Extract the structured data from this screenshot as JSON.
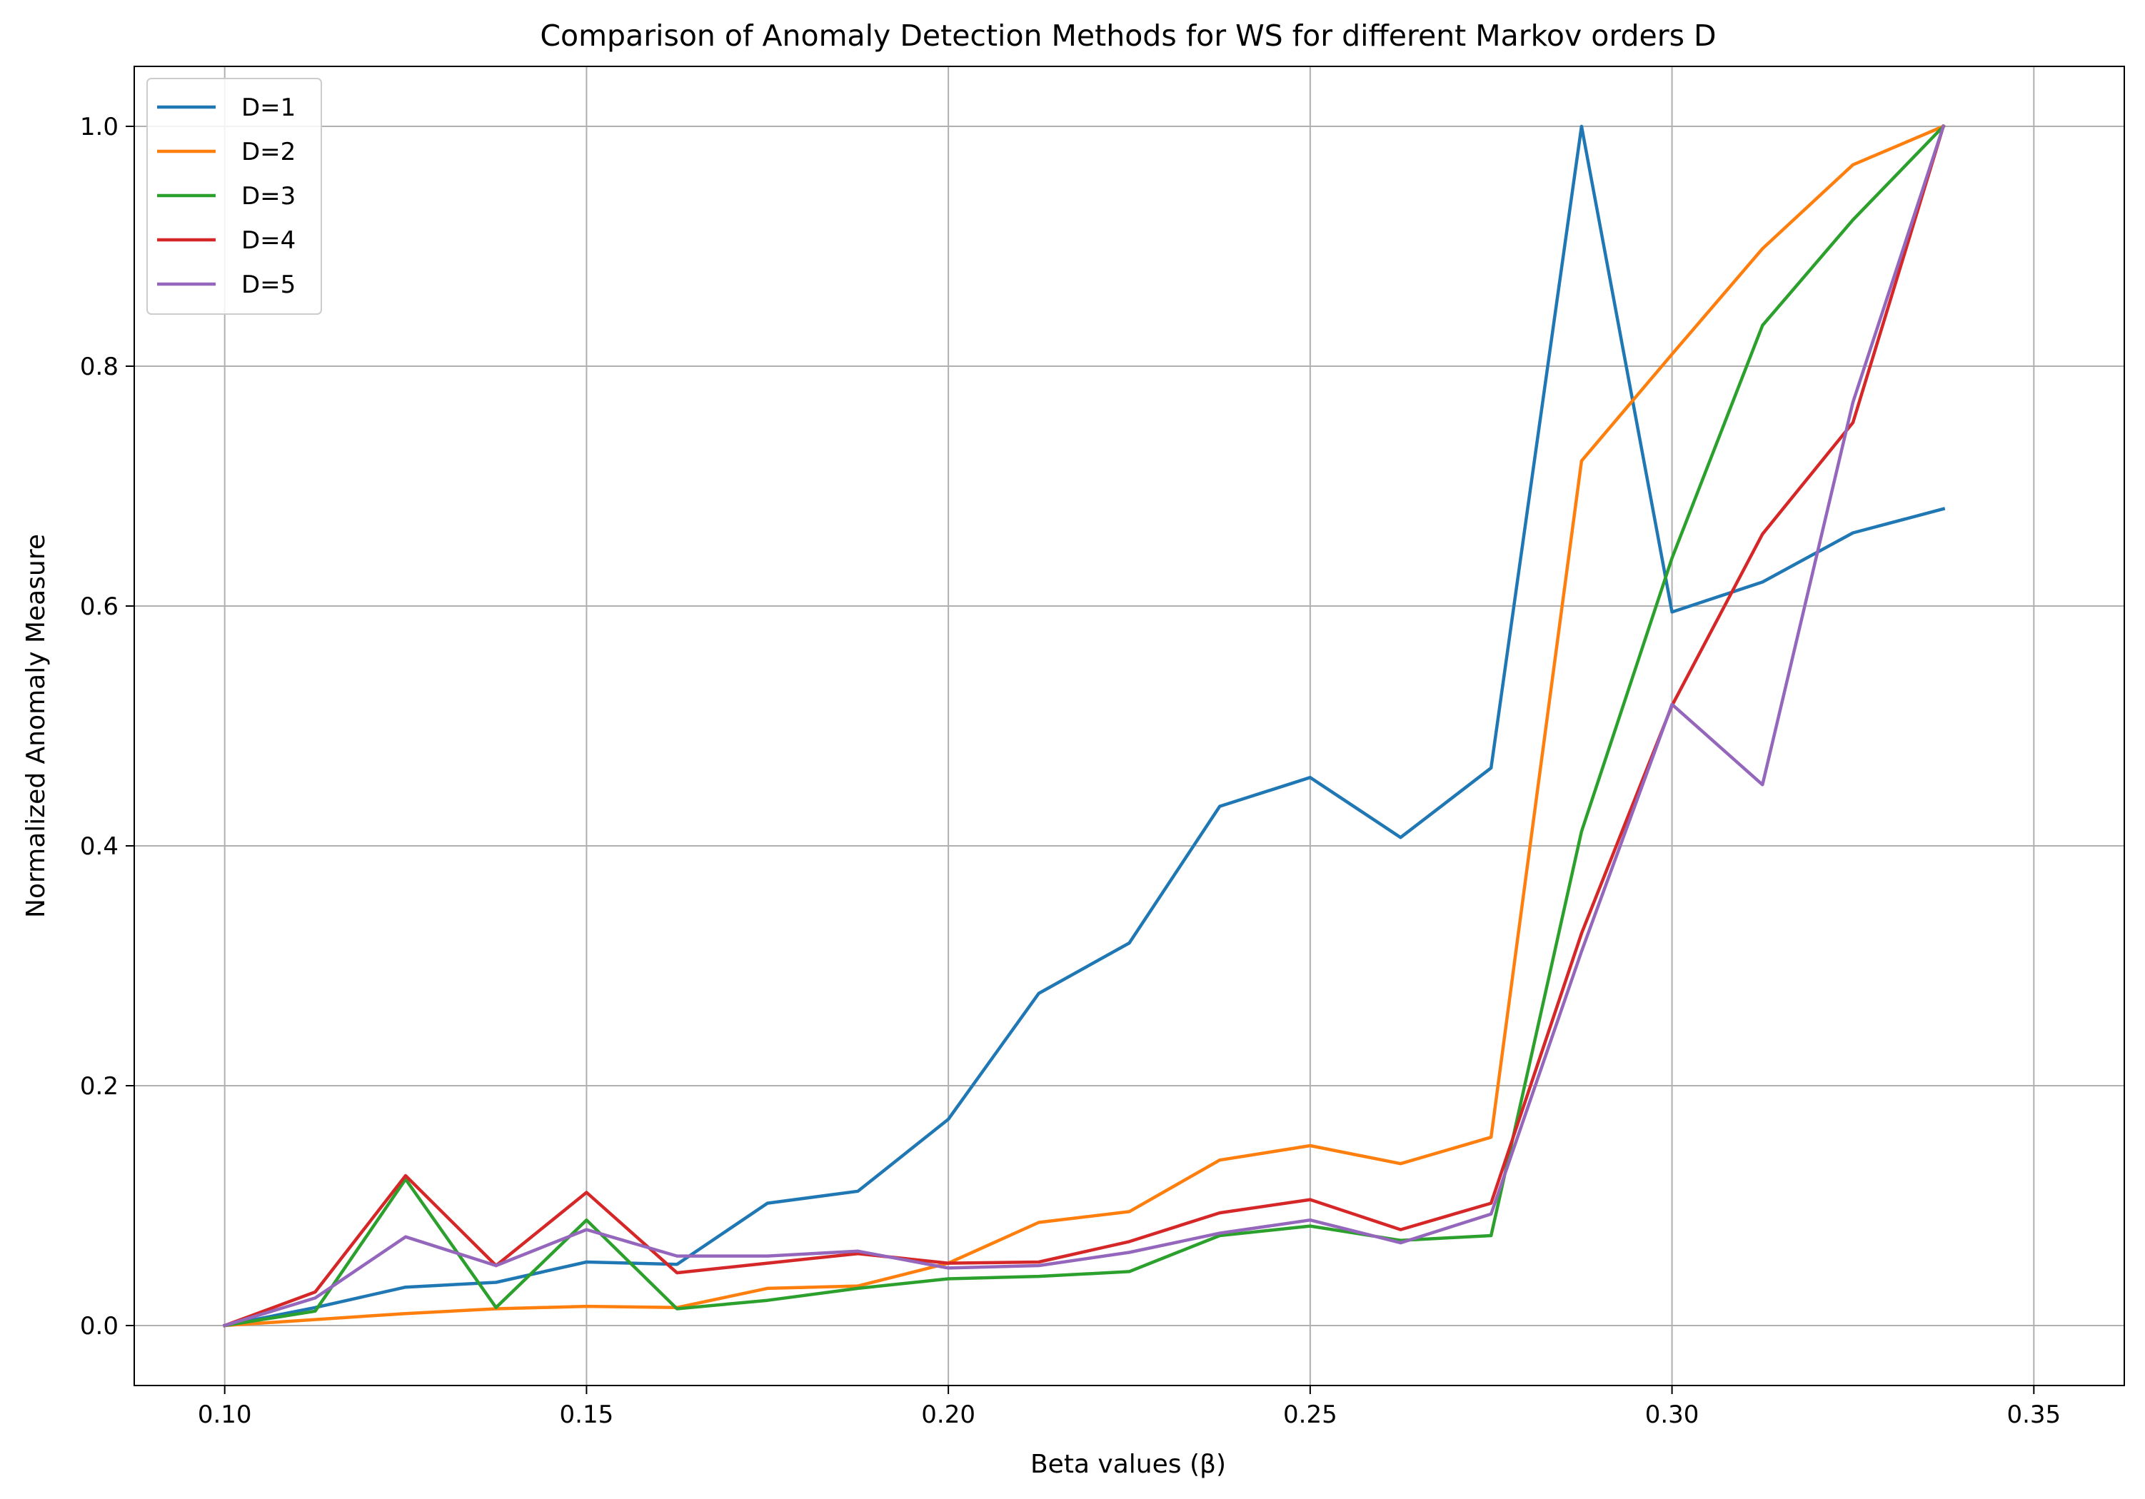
{
  "chart_data": {
    "type": "line",
    "title": "Comparison of Anomaly Detection Methods for WS for different Markov orders D",
    "xlabel": "Beta values (β)",
    "ylabel": "Normalized Anomaly Measure",
    "xlim": [
      0.0875,
      0.3625
    ],
    "ylim": [
      -0.05,
      1.05
    ],
    "xticks": [
      0.1,
      0.15,
      0.2,
      0.25,
      0.3,
      0.35
    ],
    "xtick_labels": [
      "0.10",
      "0.15",
      "0.20",
      "0.25",
      "0.30",
      "0.35"
    ],
    "yticks": [
      0.0,
      0.2,
      0.4,
      0.6,
      0.8,
      1.0
    ],
    "ytick_labels": [
      "0.0",
      "0.2",
      "0.4",
      "0.6",
      "0.8",
      "1.0"
    ],
    "grid": true,
    "legend_position": "top-left",
    "x": [
      0.1,
      0.1125,
      0.125,
      0.1375,
      0.15,
      0.1625,
      0.175,
      0.1875,
      0.2,
      0.2125,
      0.225,
      0.2375,
      0.25,
      0.2625,
      0.275,
      0.2875,
      0.3,
      0.3125,
      0.325,
      0.3375,
      0.35
    ],
    "series": [
      {
        "name": "D=1",
        "color": "#1f77b4",
        "values": [
          0.0,
          0.015,
          0.032,
          0.036,
          0.053,
          0.051,
          0.102,
          0.112,
          0.172,
          0.277,
          0.319,
          0.433,
          0.457,
          0.407,
          0.465,
          1.0,
          0.595,
          0.62,
          0.661,
          0.681,
          null
        ]
      },
      {
        "name": "D=2",
        "color": "#ff7f0e",
        "values": [
          0.0,
          0.005,
          0.01,
          0.014,
          0.016,
          0.015,
          0.031,
          0.033,
          0.052,
          0.086,
          0.095,
          0.138,
          0.15,
          0.135,
          0.157,
          0.721,
          0.81,
          0.898,
          0.968,
          1.0,
          null
        ]
      },
      {
        "name": "D=3",
        "color": "#2ca02c",
        "values": [
          0.0,
          0.012,
          0.122,
          0.015,
          0.088,
          0.014,
          0.021,
          0.031,
          0.039,
          0.041,
          0.045,
          0.075,
          0.083,
          0.071,
          0.075,
          0.412,
          0.64,
          0.834,
          0.922,
          1.0,
          null
        ]
      },
      {
        "name": "D=4",
        "color": "#d62728",
        "values": [
          0.0,
          0.028,
          0.125,
          0.05,
          0.111,
          0.044,
          0.052,
          0.06,
          0.052,
          0.053,
          0.07,
          0.094,
          0.105,
          0.08,
          0.102,
          0.327,
          0.517,
          0.66,
          0.753,
          1.0,
          null
        ]
      },
      {
        "name": "D=5",
        "color": "#9467bd",
        "values": [
          0.0,
          0.023,
          0.074,
          0.05,
          0.08,
          0.058,
          0.058,
          0.062,
          0.048,
          0.05,
          0.061,
          0.077,
          0.088,
          0.069,
          0.093,
          0.312,
          0.518,
          0.451,
          0.77,
          1.0,
          null
        ]
      }
    ]
  }
}
